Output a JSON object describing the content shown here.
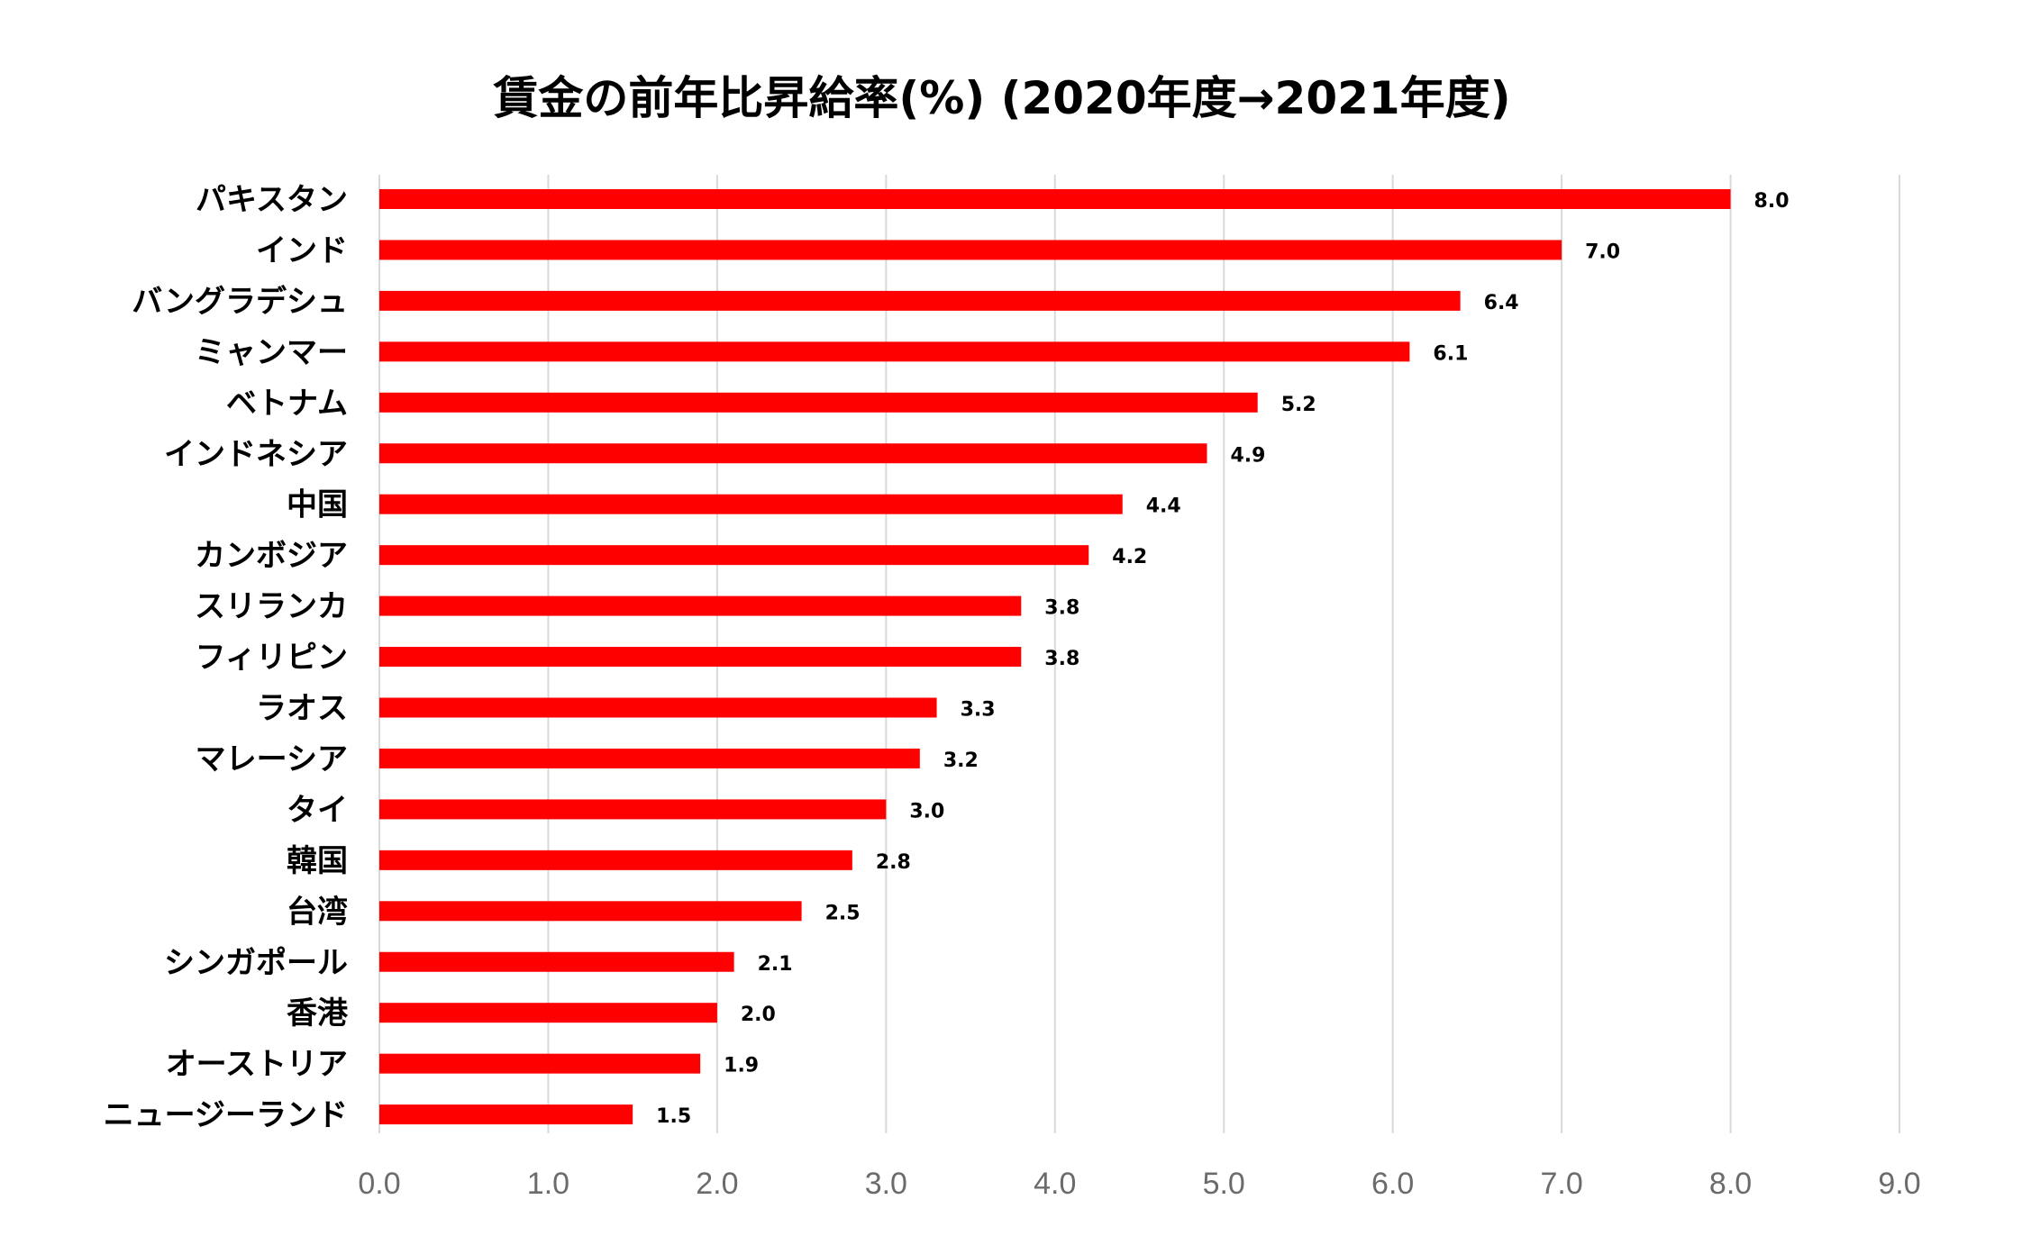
{
  "chart_data": {
    "type": "bar",
    "orientation": "horizontal",
    "title": "賃金の前年比昇給率(%) (2020年度→2021年度)",
    "categories": [
      "パキスタン",
      "インド",
      "バングラデシュ",
      "ミャンマー",
      "ベトナム",
      "インドネシア",
      "中国",
      "カンボジア",
      "スリランカ",
      "フィリピン",
      "ラオス",
      "マレーシア",
      "タイ",
      "韓国",
      "台湾",
      "シンガポール",
      "香港",
      "オーストリア",
      "ニュージーランド"
    ],
    "values": [
      8.0,
      7.0,
      6.4,
      6.1,
      5.2,
      4.9,
      4.4,
      4.2,
      3.8,
      3.8,
      3.3,
      3.2,
      3.0,
      2.8,
      2.5,
      2.1,
      2.0,
      1.9,
      1.5
    ],
    "value_labels": [
      "8.0",
      "7.0",
      "6.4",
      "6.1",
      "5.2",
      "4.9",
      "4.4",
      "4.2",
      "3.8",
      "3.8",
      "3.3",
      "3.2",
      "3.0",
      "2.8",
      "2.5",
      "2.1",
      "2.0",
      "1.9",
      "1.5"
    ],
    "xticks": [
      "0.0",
      "1.0",
      "2.0",
      "3.0",
      "4.0",
      "5.0",
      "6.0",
      "7.0",
      "8.0",
      "9.0"
    ],
    "xlim": [
      0,
      9
    ],
    "grid": true,
    "legend": "none",
    "bar_color": "#ff0000",
    "grid_color": "#d9d9d9"
  }
}
